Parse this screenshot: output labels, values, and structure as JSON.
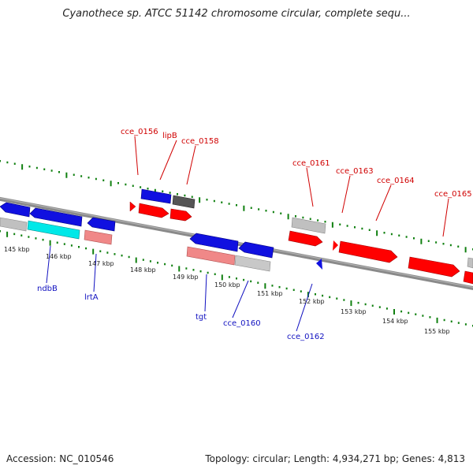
{
  "title": "Cyanothece sp. ATCC 51142 chromosome circular, complete sequ...",
  "footer": {
    "accession": "Accession: NC_010546",
    "summary": "Topology: circular; Length: 4,934,271 bp; Genes: 4,813"
  },
  "colors": {
    "forward_gene": "#ff0000",
    "reverse_gene": "#1010e0",
    "rna_gene": "#00e8e8",
    "pseudo_gene": "#c0c0c0",
    "tick": "#108010",
    "backbone": "#808080"
  },
  "scale_labels": [
    "145 kbp",
    "146 kbp",
    "147 kbp",
    "148 kbp",
    "149 kbp",
    "150 kbp",
    "151 kbp",
    "152 kbp",
    "153 kbp",
    "154 kbp",
    "155 kbp"
  ],
  "forward_labels": [
    "cce_0156",
    "lipB",
    "cce_0158",
    "cce_0161",
    "cce_0163",
    "cce_0164",
    "cce_0165"
  ],
  "reverse_labels": [
    "ndbB",
    "lrtA",
    "tgt",
    "cce_0160",
    "cce_0162"
  ]
}
